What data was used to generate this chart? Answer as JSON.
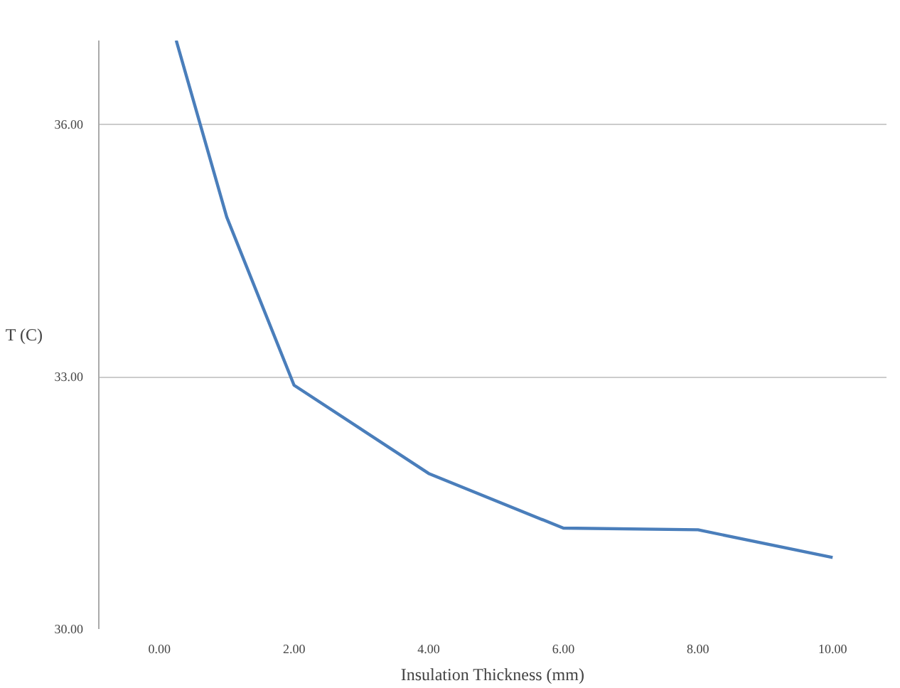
{
  "chart_data": {
    "type": "line",
    "xlabel": "Insulation Thickness (mm)",
    "ylabel": "T (C)",
    "x": [
      0.25,
      1.0,
      2.0,
      4.0,
      6.0,
      8.0,
      10.0
    ],
    "series": [
      {
        "color": "#4a7ebb",
        "values": [
          37.0,
          34.9,
          32.9,
          31.85,
          31.2,
          31.18,
          30.85
        ]
      }
    ],
    "xlim": [
      -0.9,
      10.8
    ],
    "ylim": [
      30,
      37.0
    ],
    "xticks": [
      {
        "value": 0,
        "label": "0.00"
      },
      {
        "value": 2,
        "label": "2.00"
      },
      {
        "value": 4,
        "label": "4.00"
      },
      {
        "value": 6,
        "label": "6.00"
      },
      {
        "value": 8,
        "label": "8.00"
      },
      {
        "value": 10,
        "label": "10.00"
      }
    ],
    "yticks": [
      {
        "value": 30,
        "label": "30.00"
      },
      {
        "value": 33,
        "label": "33.00"
      },
      {
        "value": 36,
        "label": "36.00"
      }
    ],
    "grid": "y",
    "marker": "none",
    "line_style": "solid"
  }
}
